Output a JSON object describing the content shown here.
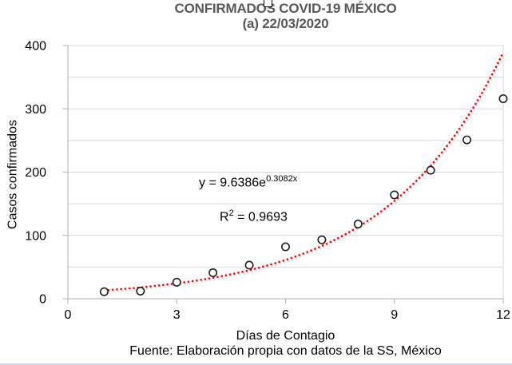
{
  "header": {
    "title_line1": "CONFIRMADOS COVID-19 MÉXICO",
    "title_line2": "(a) 22/03/2020",
    "title_color": "#595959"
  },
  "annotations": {
    "equation_base": "y = 9.6386e",
    "equation_exponent": "0.3082x",
    "r2_base": "R",
    "r2_sup": "2",
    "r2_rest": " = 0.9693"
  },
  "axes": {
    "x_title": "Días de Contagio",
    "y_title": "Casos confirmados"
  },
  "footer": {
    "source": "Fuente: Elaboración propia con datos de la SS, México"
  },
  "chart_data": {
    "type": "scatter",
    "title": "CONFIRMADOS COVID-19 MÉXICO (a) 22/03/2020",
    "xlabel": "Días de Contagio",
    "ylabel": "Casos confirmados",
    "x": [
      1,
      2,
      3,
      4,
      5,
      6,
      7,
      8,
      9,
      10,
      11,
      12
    ],
    "values": [
      11,
      12,
      26,
      41,
      53,
      82,
      93,
      118,
      164,
      203,
      251,
      316
    ],
    "xlim": [
      0,
      12
    ],
    "ylim": [
      0,
      400
    ],
    "x_ticks": [
      0,
      3,
      6,
      9,
      12
    ],
    "y_ticks": [
      0,
      100,
      200,
      300,
      400
    ],
    "y_minor_grid_step": 50,
    "grid": "horizontal-only",
    "legend": "none",
    "marker": "open-circle",
    "trendline": {
      "type": "exponential",
      "equation": "y = 9.6386e^(0.3082x)",
      "a": 9.6386,
      "b": 0.3082,
      "r_squared": 0.9693,
      "style": "dotted",
      "color": "#ff0000"
    },
    "colors": {
      "gridline": "#d9d9d9",
      "axis_line": "#bfbfbf",
      "marker_stroke": "#1f1f1f",
      "marker_fill": "#ffffff",
      "tick_label": "#000000",
      "trendline_shadow": "#bdbdbd"
    }
  }
}
